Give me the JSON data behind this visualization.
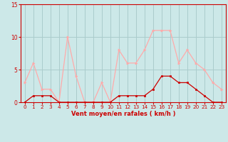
{
  "x": [
    0,
    1,
    2,
    3,
    4,
    5,
    6,
    7,
    8,
    9,
    10,
    11,
    12,
    13,
    14,
    15,
    16,
    17,
    18,
    19,
    20,
    21,
    22,
    23
  ],
  "rafales": [
    3,
    6,
    2,
    2,
    0,
    10,
    4,
    0,
    0,
    3,
    0,
    8,
    6,
    6,
    8,
    11,
    11,
    11,
    6,
    8,
    6,
    5,
    3,
    2
  ],
  "moyen": [
    0,
    1,
    1,
    1,
    0,
    0,
    0,
    0,
    0,
    0,
    0,
    1,
    1,
    1,
    1,
    2,
    4,
    4,
    3,
    3,
    2,
    1,
    0,
    0
  ],
  "color_rafales": "#ffaaaa",
  "color_moyen": "#cc0000",
  "bg_color": "#cce8e8",
  "grid_color": "#aacccc",
  "xlabel": "Vent moyen/en rafales ( km/h )",
  "xlabel_color": "#cc0000",
  "tick_color": "#cc0000",
  "axis_color": "#cc0000",
  "ylim": [
    0,
    15
  ],
  "yticks": [
    0,
    5,
    10,
    15
  ],
  "xticks": [
    0,
    1,
    2,
    3,
    4,
    5,
    6,
    7,
    8,
    9,
    10,
    11,
    12,
    13,
    14,
    15,
    16,
    17,
    18,
    19,
    20,
    21,
    22,
    23
  ]
}
